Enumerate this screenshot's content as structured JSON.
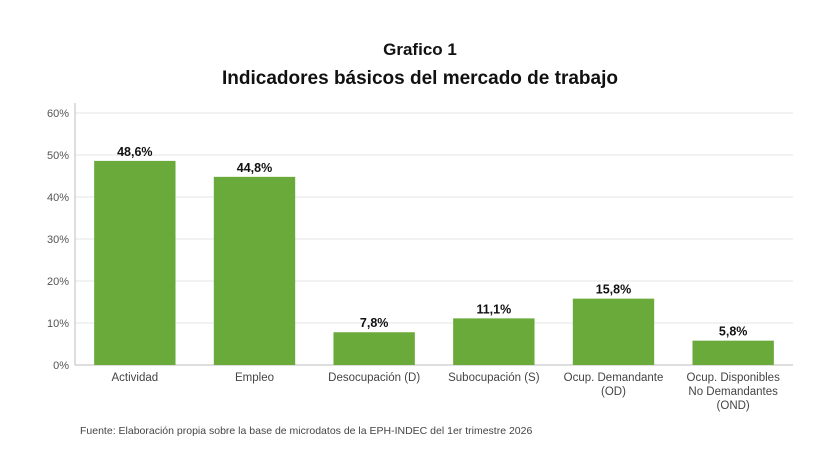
{
  "chart_data": {
    "type": "bar",
    "title": "Grafico 1",
    "subtitle": "Indicadores básicos del mercado de trabajo",
    "categories": [
      "Actividad",
      "Empleo",
      "Desocupación (D)",
      "Subocupación (S)",
      "Ocup. Demandante (OD)",
      "Ocup. Disponibles No Demandantes (OND)"
    ],
    "category_lines": [
      [
        "Actividad"
      ],
      [
        "Empleo"
      ],
      [
        "Desocupación (D)"
      ],
      [
        "Subocupación (S)"
      ],
      [
        "Ocup. Demandante",
        "(OD)"
      ],
      [
        "Ocup. Disponibles",
        "No Demandantes",
        "(OND)"
      ]
    ],
    "values": [
      48.6,
      44.8,
      7.8,
      11.1,
      15.8,
      5.8
    ],
    "data_labels": [
      "48,6%",
      "44,8%",
      "7,8%",
      "11,1%",
      "15,8%",
      "5,8%"
    ],
    "yticks": [
      0,
      10,
      20,
      30,
      40,
      50,
      60
    ],
    "ytick_labels": [
      "0%",
      "10%",
      "20%",
      "30%",
      "40%",
      "50%",
      "60%"
    ],
    "ylim": [
      0,
      60
    ],
    "xlabel": "",
    "ylabel": "",
    "grid": true,
    "bar_color": "#6aaa3a"
  },
  "source": "Fuente: Elaboración propia sobre la base de microdatos de la EPH-INDEC del 1er trimestre 2026"
}
